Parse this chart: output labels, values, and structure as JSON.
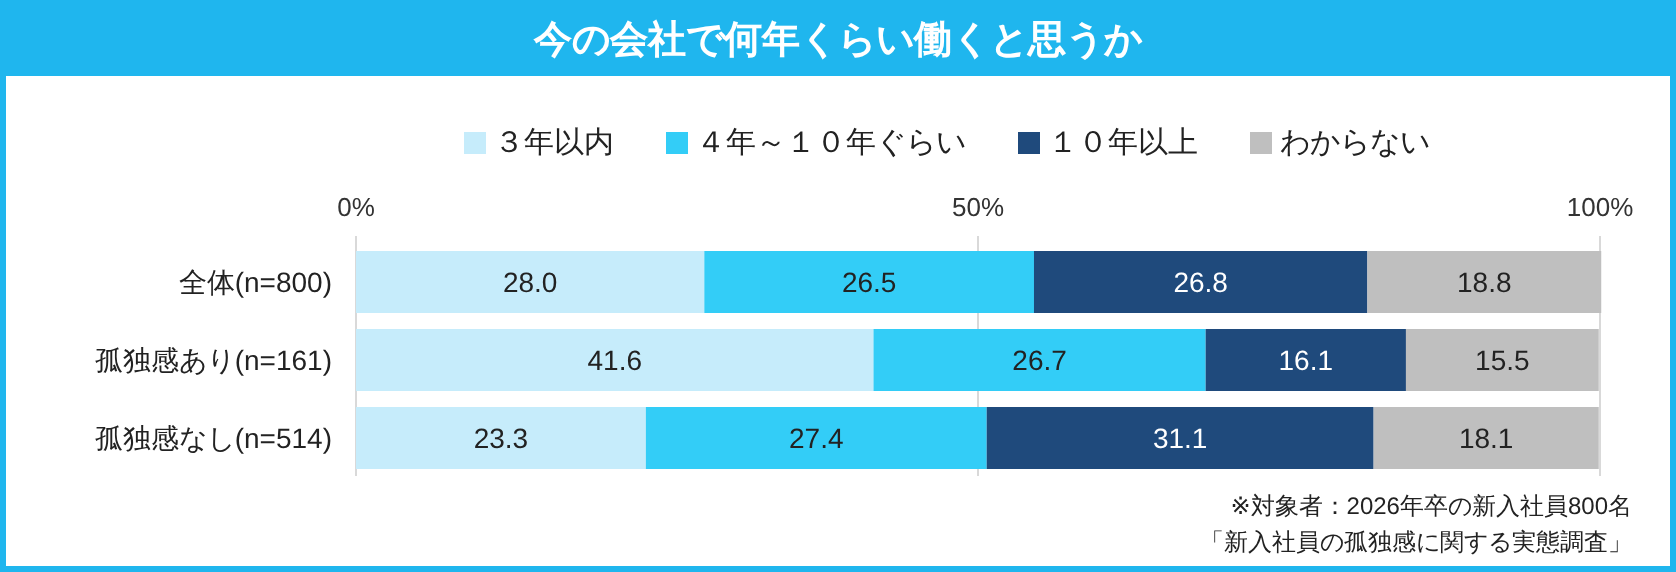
{
  "chart_data": {
    "type": "bar",
    "orientation": "horizontal",
    "stacked": true,
    "title": "今の会社で何年くらい働くと思うか",
    "categories": [
      "全体(n=800)",
      "孤独感あり(n=161)",
      "孤独感なし(n=514)"
    ],
    "series": [
      {
        "name": "３年以内",
        "color": "#c6ecfb",
        "values": [
          28.0,
          41.6,
          23.3
        ],
        "value_labels": [
          "28.0",
          "41.6",
          "23.3"
        ]
      },
      {
        "name": "４年～１０年ぐらい",
        "color": "#33cdf7",
        "values": [
          26.5,
          26.7,
          27.4
        ],
        "value_labels": [
          "26.5",
          "26.7",
          "27.4"
        ]
      },
      {
        "name": "１０年以上",
        "color": "#1f4a7c",
        "values": [
          26.8,
          16.1,
          31.1
        ],
        "value_labels": [
          "26.8",
          "16.1",
          "31.1"
        ]
      },
      {
        "name": "わからない",
        "color": "#bfbfbf",
        "values": [
          18.8,
          15.5,
          18.1
        ],
        "value_labels": [
          "18.8",
          "15.5",
          "18.1"
        ]
      }
    ],
    "xlim": [
      0,
      100
    ],
    "xticks": [
      {
        "value": 0,
        "label": "0%"
      },
      {
        "value": 50,
        "label": "50%"
      },
      {
        "value": 100,
        "label": "100%"
      }
    ],
    "grid": "x",
    "legend": "top",
    "annotations": [
      "※対象者：2026年卒の新入社員800名",
      "「新入社員の孤独感に関する実態調査」"
    ]
  }
}
